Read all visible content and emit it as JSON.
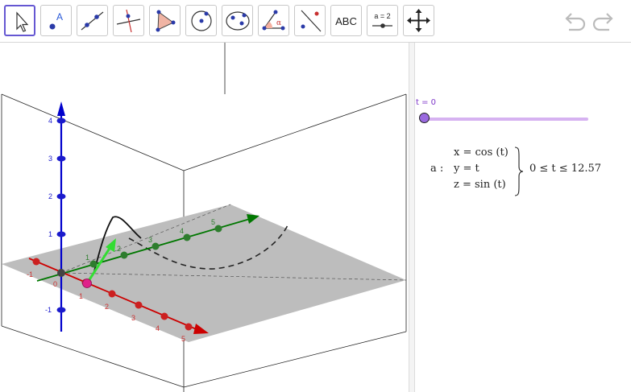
{
  "toolbar": {
    "tools": [
      {
        "name": "move-tool",
        "icon": "cursor-arrow-icon"
      },
      {
        "name": "point-tool",
        "icon": "point-label-icon",
        "label": "A"
      },
      {
        "name": "line-tool",
        "icon": "line-through-points-icon"
      },
      {
        "name": "perpendicular-tool",
        "icon": "perpendicular-line-icon"
      },
      {
        "name": "polygon-tool",
        "icon": "polygon-icon"
      },
      {
        "name": "circle-tool",
        "icon": "circle-center-point-icon"
      },
      {
        "name": "ellipse-tool",
        "icon": "ellipse-icon"
      },
      {
        "name": "angle-tool",
        "icon": "angle-icon",
        "label": "α"
      },
      {
        "name": "reflect-tool",
        "icon": "reflect-point-line-icon"
      },
      {
        "name": "text-tool",
        "icon": "text-icon",
        "label": "ABC"
      },
      {
        "name": "slider-tool",
        "icon": "slider-icon",
        "label": "a = 2"
      },
      {
        "name": "move-view-tool",
        "icon": "move-graphics-view-icon"
      }
    ],
    "undo_icon": "undo-icon",
    "redo_icon": "redo-icon"
  },
  "algebra": {
    "slider_label": "t = 0",
    "slider_value": 0,
    "curve_name": "a :",
    "eq_x": "x = cos (t)",
    "eq_y": "y = t",
    "eq_z": "z = sin (t)",
    "domain": "0 ≤ t ≤ 12.57"
  },
  "view3d": {
    "z_ticks": [
      "4",
      "3",
      "2",
      "1",
      "-1"
    ],
    "x_ticks": [
      "-1",
      "0",
      "1",
      "2",
      "3",
      "4",
      "5"
    ],
    "y_ticks": [
      "1",
      "2",
      "3",
      "4",
      "5"
    ],
    "colors": {
      "x_axis": "#cc0000",
      "y_axis": "#007700",
      "z_axis": "#0000cc",
      "plane": "#bdbdbd",
      "slider": "#9a6adf"
    }
  }
}
